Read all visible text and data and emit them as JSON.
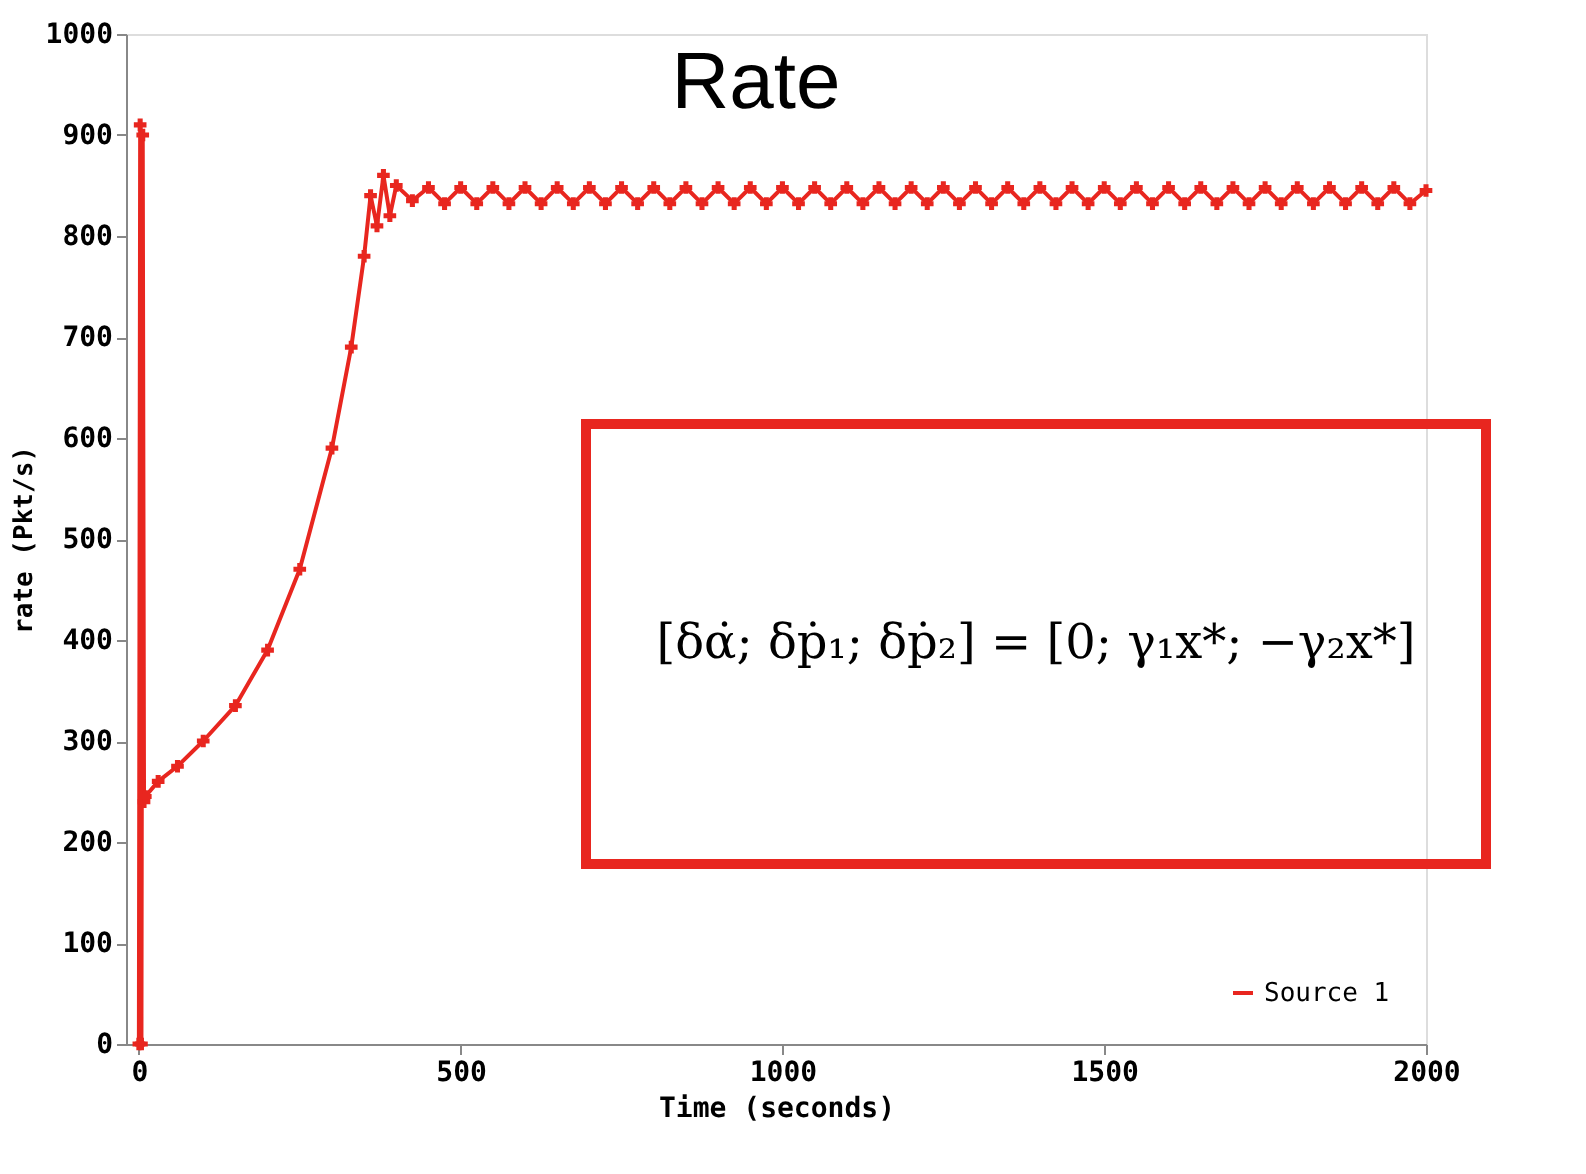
{
  "chart_data": {
    "type": "line",
    "title": "Rate",
    "xlabel": "Time (seconds)",
    "ylabel": "rate (Pkt/s)",
    "xlim": [
      -20,
      2000
    ],
    "xticks": [
      0,
      500,
      1000,
      1500,
      2000
    ],
    "ylim": [
      0,
      1000
    ],
    "yticks": [
      0,
      100,
      200,
      300,
      400,
      500,
      600,
      700,
      800,
      900,
      1000
    ],
    "grid": false,
    "legend": "bottom right",
    "marker": "cross",
    "line_style": "solid",
    "annotations": [
      "[δα̇; δṗ₁; δṗ₂] = [0; γ₁x*; −γ₂x*]"
    ],
    "series": [
      {
        "name": "Source 1",
        "color": "#e8261f",
        "x": [
          0,
          2,
          4,
          6,
          8,
          10,
          30,
          60,
          100,
          150,
          200,
          250,
          300,
          330,
          350,
          360,
          370,
          380,
          390,
          400,
          425,
          450,
          475,
          500,
          525,
          550,
          575,
          600,
          625,
          650,
          675,
          700,
          725,
          750,
          775,
          800,
          825,
          850,
          875,
          900,
          925,
          950,
          975,
          1000,
          1025,
          1050,
          1075,
          1100,
          1125,
          1150,
          1175,
          1200,
          1225,
          1250,
          1275,
          1300,
          1325,
          1350,
          1375,
          1400,
          1425,
          1450,
          1475,
          1500,
          1525,
          1550,
          1575,
          1600,
          1625,
          1650,
          1675,
          1700,
          1725,
          1750,
          1775,
          1800,
          1825,
          1850,
          1875,
          1900,
          1925,
          1950,
          1975,
          2000
        ],
        "values": [
          0,
          910,
          0,
          900,
          240,
          245,
          260,
          275,
          300,
          335,
          390,
          470,
          590,
          690,
          780,
          840,
          810,
          860,
          820,
          850,
          835,
          848,
          832,
          848,
          832,
          848,
          832,
          848,
          832,
          848,
          832,
          848,
          832,
          848,
          832,
          848,
          832,
          848,
          832,
          848,
          832,
          848,
          832,
          848,
          832,
          848,
          832,
          848,
          832,
          848,
          832,
          848,
          832,
          848,
          832,
          848,
          832,
          848,
          832,
          848,
          832,
          848,
          832,
          848,
          832,
          848,
          832,
          848,
          832,
          848,
          832,
          848,
          832,
          848,
          832,
          848,
          832,
          848,
          832,
          848,
          832,
          848,
          832,
          845
        ]
      }
    ]
  }
}
